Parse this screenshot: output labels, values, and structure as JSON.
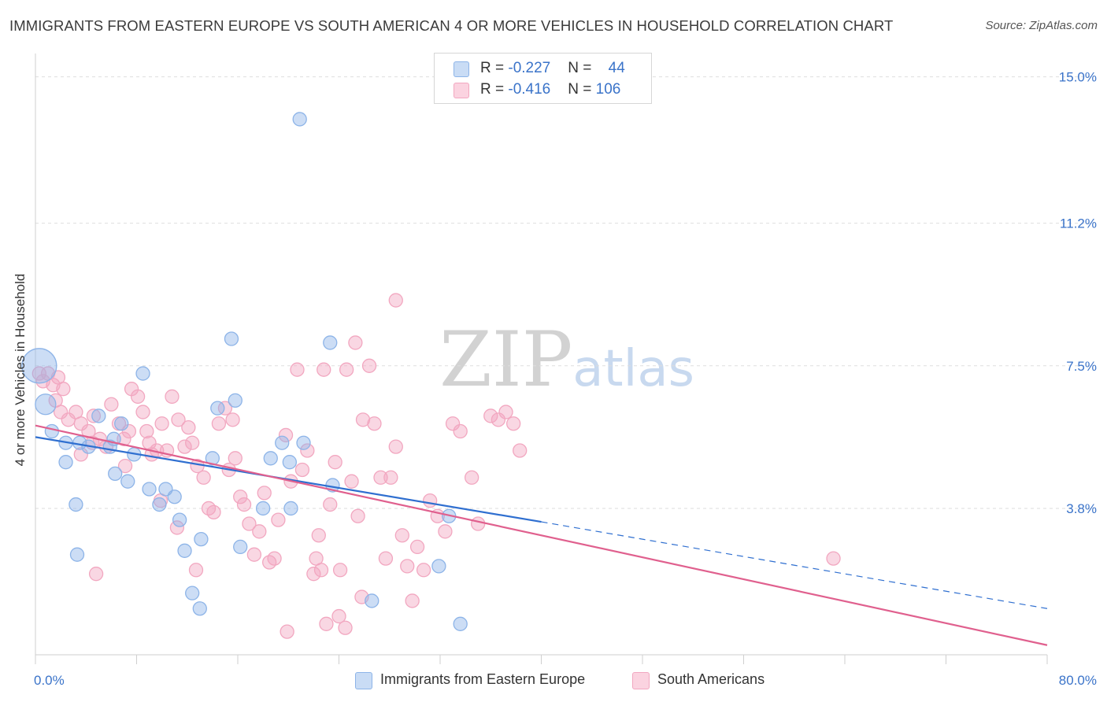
{
  "title": "IMMIGRANTS FROM EASTERN EUROPE VS SOUTH AMERICAN 4 OR MORE VEHICLES IN HOUSEHOLD CORRELATION CHART",
  "source": "Source: ZipAtlas.com",
  "watermark": "ZIPatlas",
  "legend_top": [
    {
      "r_label": "R = ",
      "r_value": "-0.227",
      "n_label": "N = ",
      "n_value": "44"
    },
    {
      "r_label": "R = ",
      "r_value": "-0.416",
      "n_label": "N = ",
      "n_value": "106"
    }
  ],
  "chart_data": {
    "type": "scatter",
    "title": "IMMIGRANTS FROM EASTERN EUROPE VS SOUTH AMERICAN 4 OR MORE VEHICLES IN HOUSEHOLD CORRELATION CHART",
    "xlabel": "",
    "ylabel": "4 or more Vehicles in Household",
    "xlim": [
      0,
      80
    ],
    "ylim": [
      0,
      15.4
    ],
    "x_tick_labels": [
      "0.0%",
      "80.0%"
    ],
    "y_ticks": [
      3.8,
      7.5,
      11.2,
      15.0
    ],
    "y_tick_labels": [
      "3.8%",
      "7.5%",
      "11.2%",
      "15.0%"
    ],
    "grid": "horizontal dashed",
    "legend_placement": "bottom",
    "series": [
      {
        "name": "Immigrants from Eastern Europe",
        "color": "#8db4e8",
        "line_color": "#2f6fd0",
        "r": -0.227,
        "n": 44,
        "trend": {
          "x0": 0,
          "y0": 5.65,
          "x1": 40,
          "y1": 3.45,
          "dashed_to": 80,
          "dashed_y": 1.2
        },
        "points": [
          [
            0.3,
            7.5
          ],
          [
            0.8,
            6.5
          ],
          [
            1.3,
            5.8
          ],
          [
            3.5,
            5.5
          ],
          [
            2.4,
            5.5
          ],
          [
            4.2,
            5.4
          ],
          [
            2.4,
            5.0
          ],
          [
            5.0,
            6.2
          ],
          [
            5.9,
            5.4
          ],
          [
            6.8,
            6.0
          ],
          [
            6.2,
            5.6
          ],
          [
            7.8,
            5.2
          ],
          [
            8.5,
            7.3
          ],
          [
            6.3,
            4.7
          ],
          [
            7.3,
            4.5
          ],
          [
            9.0,
            4.3
          ],
          [
            10.3,
            4.3
          ],
          [
            11.0,
            4.1
          ],
          [
            9.8,
            3.9
          ],
          [
            11.4,
            3.5
          ],
          [
            11.8,
            2.7
          ],
          [
            13.1,
            3.0
          ],
          [
            14.0,
            5.1
          ],
          [
            14.4,
            6.4
          ],
          [
            15.5,
            8.2
          ],
          [
            15.8,
            6.6
          ],
          [
            16.2,
            2.8
          ],
          [
            18.0,
            3.8
          ],
          [
            18.6,
            5.1
          ],
          [
            19.5,
            5.5
          ],
          [
            20.1,
            5.0
          ],
          [
            21.2,
            5.5
          ],
          [
            13.0,
            1.2
          ],
          [
            3.3,
            2.6
          ],
          [
            20.9,
            13.9
          ],
          [
            23.3,
            8.1
          ],
          [
            23.5,
            4.4
          ],
          [
            26.6,
            1.4
          ],
          [
            31.9,
            2.3
          ],
          [
            32.7,
            3.6
          ],
          [
            33.6,
            0.8
          ],
          [
            3.2,
            3.9
          ],
          [
            12.4,
            1.6
          ],
          [
            20.2,
            3.8
          ]
        ]
      },
      {
        "name": "South Americans",
        "color": "#f2a7c0",
        "line_color": "#e0608e",
        "r": -0.416,
        "n": 106,
        "trend": {
          "x0": 0,
          "y0": 5.95,
          "x1": 80,
          "y1": 0.25
        },
        "points": [
          [
            0.3,
            7.3
          ],
          [
            0.6,
            7.1
          ],
          [
            1.0,
            7.3
          ],
          [
            1.4,
            7.0
          ],
          [
            1.8,
            7.2
          ],
          [
            1.6,
            6.6
          ],
          [
            2.0,
            6.3
          ],
          [
            2.2,
            6.9
          ],
          [
            2.6,
            6.1
          ],
          [
            3.2,
            6.3
          ],
          [
            3.6,
            6.0
          ],
          [
            4.2,
            5.8
          ],
          [
            4.6,
            6.2
          ],
          [
            5.1,
            5.6
          ],
          [
            5.6,
            5.4
          ],
          [
            6.0,
            6.5
          ],
          [
            6.6,
            6.0
          ],
          [
            7.0,
            5.6
          ],
          [
            7.4,
            5.8
          ],
          [
            7.6,
            6.9
          ],
          [
            8.1,
            6.7
          ],
          [
            8.5,
            6.3
          ],
          [
            8.8,
            5.8
          ],
          [
            9.0,
            5.5
          ],
          [
            9.2,
            5.2
          ],
          [
            9.6,
            5.3
          ],
          [
            10.0,
            6.0
          ],
          [
            10.4,
            5.3
          ],
          [
            10.8,
            6.7
          ],
          [
            11.3,
            6.1
          ],
          [
            11.8,
            5.4
          ],
          [
            12.1,
            5.9
          ],
          [
            12.4,
            5.5
          ],
          [
            12.8,
            4.9
          ],
          [
            13.3,
            4.6
          ],
          [
            13.7,
            3.8
          ],
          [
            14.1,
            3.7
          ],
          [
            14.5,
            6.0
          ],
          [
            15.0,
            6.4
          ],
          [
            15.3,
            4.8
          ],
          [
            15.8,
            5.1
          ],
          [
            16.2,
            4.1
          ],
          [
            16.5,
            3.9
          ],
          [
            16.9,
            3.4
          ],
          [
            17.3,
            2.6
          ],
          [
            17.7,
            3.2
          ],
          [
            18.1,
            4.2
          ],
          [
            18.5,
            2.4
          ],
          [
            18.9,
            2.5
          ],
          [
            19.2,
            3.5
          ],
          [
            19.8,
            5.7
          ],
          [
            20.2,
            4.5
          ],
          [
            20.7,
            7.4
          ],
          [
            21.1,
            4.8
          ],
          [
            21.5,
            5.3
          ],
          [
            22.0,
            2.1
          ],
          [
            22.4,
            3.1
          ],
          [
            22.8,
            7.4
          ],
          [
            23.3,
            3.9
          ],
          [
            23.7,
            5.0
          ],
          [
            24.1,
            2.2
          ],
          [
            24.6,
            7.4
          ],
          [
            25.0,
            4.5
          ],
          [
            25.5,
            3.6
          ],
          [
            25.9,
            6.1
          ],
          [
            26.4,
            7.5
          ],
          [
            26.8,
            6.0
          ],
          [
            27.3,
            4.6
          ],
          [
            27.7,
            2.5
          ],
          [
            28.1,
            4.6
          ],
          [
            28.5,
            5.4
          ],
          [
            29.0,
            3.1
          ],
          [
            29.4,
            2.3
          ],
          [
            29.8,
            1.4
          ],
          [
            30.2,
            2.8
          ],
          [
            30.7,
            2.2
          ],
          [
            31.2,
            4.0
          ],
          [
            31.8,
            3.6
          ],
          [
            32.4,
            3.2
          ],
          [
            33.0,
            6.0
          ],
          [
            33.6,
            5.8
          ],
          [
            34.5,
            4.6
          ],
          [
            35.0,
            3.4
          ],
          [
            36.0,
            6.2
          ],
          [
            36.6,
            6.1
          ],
          [
            37.2,
            6.3
          ],
          [
            37.8,
            6.0
          ],
          [
            38.3,
            5.3
          ],
          [
            28.5,
            9.2
          ],
          [
            25.3,
            8.1
          ],
          [
            15.6,
            6.1
          ],
          [
            11.2,
            3.3
          ],
          [
            9.9,
            4.0
          ],
          [
            7.1,
            4.9
          ],
          [
            4.5,
            5.5
          ],
          [
            3.6,
            5.2
          ],
          [
            22.6,
            2.2
          ],
          [
            24.0,
            1.0
          ],
          [
            25.8,
            1.5
          ],
          [
            24.5,
            0.7
          ],
          [
            23.0,
            0.8
          ],
          [
            19.9,
            0.6
          ],
          [
            22.2,
            2.5
          ],
          [
            12.7,
            2.2
          ],
          [
            4.8,
            2.1
          ],
          [
            63.1,
            2.5
          ]
        ]
      }
    ]
  },
  "legend_bottom": [
    {
      "label": "Immigrants from Eastern Europe",
      "color": "#c9dcf5",
      "border": "#8db4e8"
    },
    {
      "label": "South Americans",
      "color": "#fbd3e0",
      "border": "#f2a7c0"
    }
  ]
}
